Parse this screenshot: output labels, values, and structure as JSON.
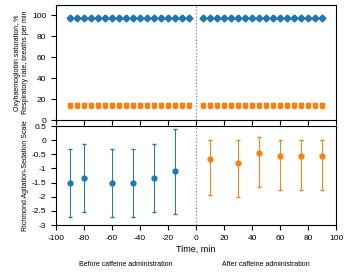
{
  "chart_data": [
    {
      "type": "scatter",
      "ylabel": "Oxyhaemoglobin saturation, %\nRespiratory rate, breaths per min",
      "xlim": [
        -100,
        100
      ],
      "xticks": [
        -100,
        -80,
        -60,
        -40,
        -20,
        0,
        20,
        40,
        60,
        80,
        100
      ],
      "ylim": [
        0,
        110
      ],
      "yticks": [
        0,
        20,
        40,
        60,
        80,
        100
      ],
      "tick_labels": "y",
      "vlines": [
        0
      ],
      "series": [
        {
          "marker": "diamond",
          "x": [
            -90,
            -85,
            -80,
            -75,
            -70,
            -65,
            -60,
            -55,
            -50,
            -45,
            -40,
            -35,
            -30,
            -25,
            -20,
            -15,
            -10,
            -5,
            5,
            10,
            15,
            20,
            25,
            30,
            35,
            40,
            45,
            50,
            55,
            60,
            65,
            70,
            75,
            80,
            85,
            90
          ],
          "values": [
            98,
            98,
            98,
            98,
            98,
            98,
            98,
            98,
            98,
            98,
            98,
            98,
            98,
            98,
            98,
            98,
            98,
            98,
            98,
            98,
            98,
            98,
            98,
            98,
            98,
            98,
            98,
            98,
            98,
            98,
            98,
            98,
            98,
            98,
            98,
            98
          ],
          "yerr": [
            1,
            1,
            1,
            1,
            1,
            1,
            1,
            1,
            1,
            1,
            1,
            1,
            1,
            1,
            1,
            1,
            1,
            1,
            1,
            1,
            1,
            1,
            1,
            1,
            1,
            1,
            1,
            1,
            1,
            1,
            1,
            1,
            1,
            1,
            1,
            1
          ]
        },
        {
          "marker": "square",
          "x": [
            -90,
            -85,
            -80,
            -75,
            -70,
            -65,
            -60,
            -55,
            -50,
            -45,
            -40,
            -35,
            -30,
            -25,
            -20,
            -15,
            -10,
            -5,
            5,
            10,
            15,
            20,
            25,
            30,
            35,
            40,
            45,
            50,
            55,
            60,
            65,
            70,
            75,
            80,
            85,
            90
          ],
          "values": [
            14,
            14,
            14,
            14,
            14,
            14,
            14,
            14,
            14,
            14,
            14,
            14,
            14,
            14,
            14,
            14,
            14,
            14,
            14,
            14,
            14,
            14,
            14,
            14,
            14,
            14,
            14,
            14,
            14,
            14,
            14,
            14,
            14,
            14,
            14,
            14
          ],
          "yerr": [
            2.5,
            2.5,
            2.5,
            2.5,
            2.5,
            2.5,
            2.5,
            2.5,
            2.5,
            2.5,
            2.5,
            2.5,
            2.5,
            2.5,
            2.5,
            2.5,
            2.5,
            2.5,
            2.5,
            2.5,
            2.5,
            2.5,
            2.5,
            2.5,
            2.5,
            2.5,
            2.5,
            2.5,
            2.5,
            2.5,
            2.5,
            2.5,
            2.5,
            2.5,
            2.5,
            2.5
          ]
        }
      ]
    },
    {
      "type": "scatter",
      "ylabel": "Richmond Agitation-Sedation Scale",
      "xlabel": "Time, min",
      "xlim": [
        -100,
        100
      ],
      "xticks": [
        -100,
        -80,
        -60,
        -40,
        -20,
        0,
        20,
        40,
        60,
        80,
        100
      ],
      "ylim": [
        -3,
        0.5
      ],
      "yticks": [
        -3,
        -2.5,
        -2,
        -1.5,
        -1,
        -0.5,
        0,
        0.5
      ],
      "vlines": [
        0
      ],
      "annotations": [
        "Before caffeine administration",
        "After caffeine administration"
      ],
      "series": [
        {
          "marker": "circle",
          "x": [
            -90,
            -80,
            -60,
            -45,
            -30,
            -15
          ],
          "values": [
            -1.5,
            -1.35,
            -1.5,
            -1.5,
            -1.35,
            -1.1
          ],
          "yerr_low": [
            1.2,
            1.2,
            1.2,
            1.2,
            1.2,
            1.5
          ],
          "yerr_high": [
            1.2,
            1.2,
            1.2,
            1.2,
            1.2,
            1.5
          ]
        },
        {
          "marker": "circle",
          "x": [
            10,
            30,
            45,
            60,
            75,
            90
          ],
          "values": [
            -0.65,
            -0.8,
            -0.45,
            -0.55,
            -0.55,
            -0.55
          ],
          "yerr_low": [
            1.3,
            1.2,
            1.2,
            1.2,
            1.2,
            1.2
          ],
          "yerr_high": [
            0.65,
            0.8,
            0.55,
            0.55,
            0.55,
            0.55
          ]
        }
      ]
    }
  ]
}
